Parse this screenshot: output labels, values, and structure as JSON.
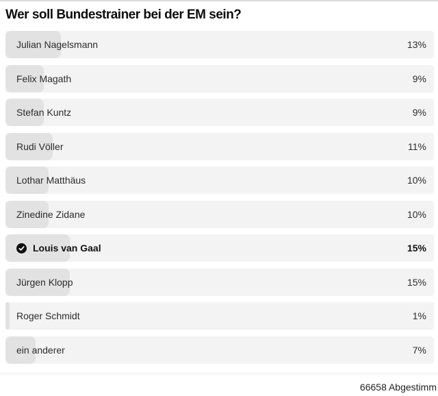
{
  "poll": {
    "title": "Wer soll Bundestrainer bei der EM sein?",
    "options": [
      {
        "label": "Julian Nagelsmann",
        "percent_label": "13%",
        "percent": 13,
        "selected": false
      },
      {
        "label": "Felix Magath",
        "percent_label": "9%",
        "percent": 9,
        "selected": false
      },
      {
        "label": "Stefan Kuntz",
        "percent_label": "9%",
        "percent": 9,
        "selected": false
      },
      {
        "label": "Rudi Völler",
        "percent_label": "11%",
        "percent": 11,
        "selected": false
      },
      {
        "label": "Lothar Matthäus",
        "percent_label": "10%",
        "percent": 10,
        "selected": false
      },
      {
        "label": "Zinedine Zidane",
        "percent_label": "10%",
        "percent": 10,
        "selected": false
      },
      {
        "label": "Louis van Gaal",
        "percent_label": "15%",
        "percent": 15,
        "selected": true
      },
      {
        "label": "Jürgen Klopp",
        "percent_label": "15%",
        "percent": 15,
        "selected": false
      },
      {
        "label": "Roger Schmidt",
        "percent_label": "1%",
        "percent": 1,
        "selected": false
      },
      {
        "label": "ein anderer",
        "percent_label": "7%",
        "percent": 7,
        "selected": false
      }
    ],
    "selected_icon": "check-circle-icon",
    "footer_text": "66658 Abgestimm"
  },
  "colors": {
    "row_background": "#f3f3f3",
    "bar_fill": "#e2e2e2",
    "check_circle": "#111111",
    "divider": "#f8f8f8",
    "top_border": "#dadada"
  },
  "chart_data": {
    "type": "bar",
    "title": "Wer soll Bundestrainer bei der EM sein?",
    "categories": [
      "Julian Nagelsmann",
      "Felix Magath",
      "Stefan Kuntz",
      "Rudi Völler",
      "Lothar Matthäus",
      "Zinedine Zidane",
      "Louis van Gaal",
      "Jürgen Klopp",
      "Roger Schmidt",
      "ein anderer"
    ],
    "values": [
      13,
      9,
      9,
      11,
      10,
      10,
      15,
      15,
      1,
      7
    ],
    "unit": "%",
    "orientation": "horizontal",
    "xlim": [
      0,
      100
    ],
    "selected_category": "Louis van Gaal",
    "footer_label": "66658 Abgestimm"
  }
}
